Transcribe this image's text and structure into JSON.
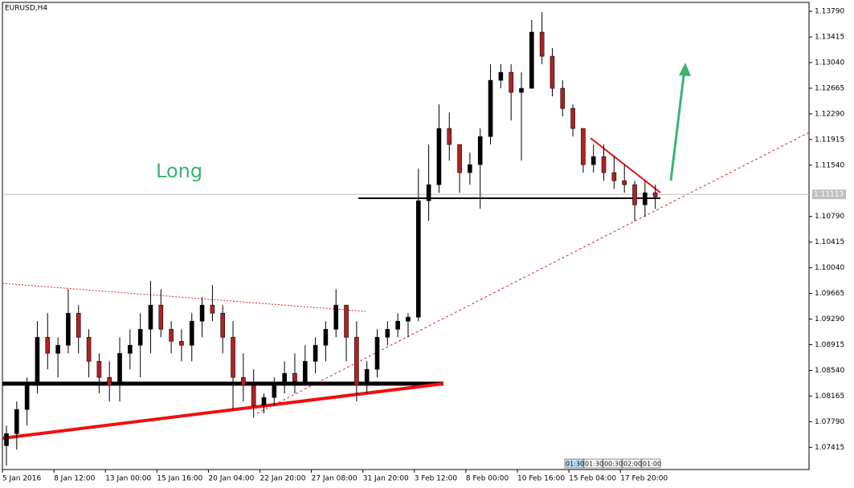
{
  "chart_data": {
    "type": "candlestick",
    "title": "EURUSD,H4",
    "annotation": "Long",
    "categories": [
      "5 Jan 2016",
      null,
      null,
      null,
      null,
      "8 Jan 12:00",
      null,
      null,
      null,
      null,
      "13 Jan 00:00",
      null,
      null,
      null,
      null,
      "15 Jan 16:00",
      null,
      null,
      null,
      null,
      "20 Jan 04:00",
      null,
      null,
      null,
      null,
      "22 Jan 20:00",
      null,
      null,
      null,
      null,
      "27 Jan 08:00",
      null,
      null,
      null,
      null,
      "31 Jan 20:00",
      null,
      null,
      null,
      null,
      "3 Feb 12:00",
      null,
      null,
      null,
      null,
      "8 Feb 00:00",
      null,
      null,
      null,
      null,
      "10 Feb 16:00",
      null,
      null,
      null,
      null,
      "15 Feb 04:00",
      null,
      null,
      null,
      null,
      "17 Feb 20:00",
      null,
      null,
      null
    ],
    "open": [
      1.07439,
      1.07615,
      1.07968,
      1.0832,
      1.09024,
      1.08789,
      1.08907,
      1.09376,
      1.09024,
      1.08672,
      1.08437,
      1.0832,
      1.08789,
      1.08907,
      1.09141,
      1.09494,
      1.09141,
      1.08965,
      1.08907,
      1.09259,
      1.09494,
      1.09376,
      1.09024,
      1.08437,
      1.0832,
      1.08027,
      1.08144,
      1.0832,
      1.08496,
      1.08379,
      1.08672,
      1.08907,
      1.09141,
      1.09494,
      1.09024,
      1.0832,
      1.08555,
      1.09024,
      1.09141,
      1.09259,
      1.09318,
      1.1102,
      1.11255,
      1.12077,
      1.11842,
      1.11431,
      1.11548,
      1.11959,
      1.12781,
      1.12898,
      1.12605,
      1.12664,
      1.13485,
      1.13133,
      1.12664,
      1.1237,
      1.12077,
      1.11548,
      1.11666,
      1.11431,
      1.11313,
      1.11255,
      1.10961,
      1.11137
    ],
    "high": [
      1.07733,
      1.08085,
      1.08437,
      1.09259,
      1.09376,
      1.09024,
      1.09727,
      1.09494,
      1.09141,
      1.08789,
      1.08672,
      1.09024,
      1.09141,
      1.09376,
      1.09846,
      1.09727,
      1.09259,
      1.09141,
      1.09376,
      1.09611,
      1.09787,
      1.09494,
      1.09259,
      1.08789,
      1.08555,
      1.08203,
      1.08437,
      1.08672,
      1.08789,
      1.08907,
      1.09024,
      1.09259,
      1.09727,
      1.09494,
      1.09259,
      1.08672,
      1.09141,
      1.09259,
      1.09376,
      1.09376,
      1.1149,
      1.11842,
      1.12429,
      1.12311,
      1.11842,
      1.11724,
      1.12077,
      1.13016,
      1.13016,
      1.13016,
      1.12898,
      1.13662,
      1.13779,
      1.13251,
      1.12781,
      1.12429,
      1.12077,
      1.11842,
      1.11842,
      1.11666,
      1.11548,
      1.11313,
      1.11313,
      1.11255
    ],
    "low": [
      1.07146,
      1.07381,
      1.07733,
      1.08203,
      1.08555,
      1.08437,
      1.08789,
      1.08789,
      1.08437,
      1.08203,
      1.08085,
      1.08085,
      1.08555,
      1.08437,
      1.08789,
      1.09024,
      1.08789,
      1.08672,
      1.08672,
      1.09024,
      1.09259,
      1.08789,
      1.07968,
      1.08085,
      1.0785,
      1.07909,
      1.08027,
      1.08203,
      1.08203,
      1.0832,
      1.08496,
      1.08672,
      1.09024,
      1.08672,
      1.08085,
      1.08203,
      1.08437,
      1.08907,
      1.09024,
      1.09024,
      1.09259,
      1.10726,
      1.11137,
      1.11607,
      1.11137,
      1.11255,
      1.10903,
      1.11842,
      1.12664,
      1.12194,
      1.11607,
      1.12664,
      1.13016,
      1.12546,
      1.12253,
      1.11959,
      1.11431,
      1.11431,
      1.11313,
      1.11196,
      1.11137,
      1.10726,
      1.10785,
      1.10903
    ],
    "close": [
      1.07615,
      1.07968,
      1.0832,
      1.09024,
      1.08789,
      1.08907,
      1.09376,
      1.09024,
      1.08672,
      1.08437,
      1.0832,
      1.08789,
      1.08907,
      1.09141,
      1.09494,
      1.09141,
      1.08965,
      1.08907,
      1.09259,
      1.09494,
      1.09376,
      1.09024,
      1.08437,
      1.0832,
      1.08027,
      1.08144,
      1.0832,
      1.08496,
      1.08379,
      1.08672,
      1.08907,
      1.09141,
      1.09494,
      1.09024,
      1.0832,
      1.08555,
      1.09024,
      1.09141,
      1.09259,
      1.09318,
      1.1102,
      1.11255,
      1.12077,
      1.11842,
      1.11431,
      1.11548,
      1.11959,
      1.12781,
      1.12898,
      1.12605,
      1.12664,
      1.13485,
      1.13133,
      1.12664,
      1.1237,
      1.12077,
      1.11548,
      1.11666,
      1.11431,
      1.11313,
      1.11255,
      1.10961,
      1.11137,
      1.11079
    ],
    "up_color": "#000000",
    "down_color": "#b22222",
    "current_price": {
      "value": 1.11113,
      "label": "1.11113"
    },
    "ylim": [
      1.0709,
      1.1392
    ],
    "yticks": [
      {
        "value": 1.07415,
        "label": "1.07415"
      },
      {
        "value": 1.0779,
        "label": "1.07790"
      },
      {
        "value": 1.08165,
        "label": "1.08165"
      },
      {
        "value": 1.0854,
        "label": "1.08540"
      },
      {
        "value": 1.08915,
        "label": "1.08915"
      },
      {
        "value": 1.0929,
        "label": "1.09290"
      },
      {
        "value": 1.09665,
        "label": "1.09665"
      },
      {
        "value": 1.1004,
        "label": "1.10040"
      },
      {
        "value": 1.10415,
        "label": "1.10415"
      },
      {
        "value": 1.1079,
        "label": "1.10790"
      },
      {
        "value": 1.1154,
        "label": "1.11540"
      },
      {
        "value": 1.11915,
        "label": "1.11915"
      },
      {
        "value": 1.1229,
        "label": "1.12290"
      },
      {
        "value": 1.12665,
        "label": "1.12665"
      },
      {
        "value": 1.1304,
        "label": "1.13040"
      },
      {
        "value": 1.13415,
        "label": "1.13415"
      },
      {
        "value": 1.1379,
        "label": "1.13790"
      }
    ],
    "timer_labels": [
      "01:30",
      "01:30",
      "00:30",
      "02:00",
      "01:00"
    ]
  }
}
